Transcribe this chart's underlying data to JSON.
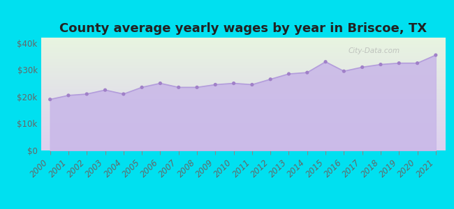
{
  "title": "County average yearly wages by year in Briscoe, TX",
  "years": [
    2000,
    2001,
    2002,
    2003,
    2004,
    2005,
    2006,
    2007,
    2008,
    2009,
    2010,
    2011,
    2012,
    2013,
    2014,
    2015,
    2016,
    2017,
    2018,
    2019,
    2020,
    2021
  ],
  "wages": [
    19000,
    20500,
    21000,
    22500,
    21000,
    23500,
    25000,
    23500,
    23500,
    24500,
    25000,
    24500,
    26500,
    28500,
    29000,
    33000,
    29500,
    31000,
    32000,
    32500,
    32500,
    35500
  ],
  "line_color": "#b39ddb",
  "fill_color": "#c9b8e8",
  "marker_color": "#a080c8",
  "background_outer": "#00e0f0",
  "background_plot_top": "#e8f5e0",
  "background_plot_bottom": "#ddd0f0",
  "title_color": "#222222",
  "axis_label_color": "#666666",
  "ylim": [
    0,
    42000
  ],
  "yticks": [
    0,
    10000,
    20000,
    30000,
    40000
  ],
  "ytick_labels": [
    "$0",
    "$10k",
    "$20k",
    "$30k",
    "$40k"
  ],
  "watermark": "City-Data.com",
  "title_fontsize": 13,
  "tick_fontsize": 8.5
}
